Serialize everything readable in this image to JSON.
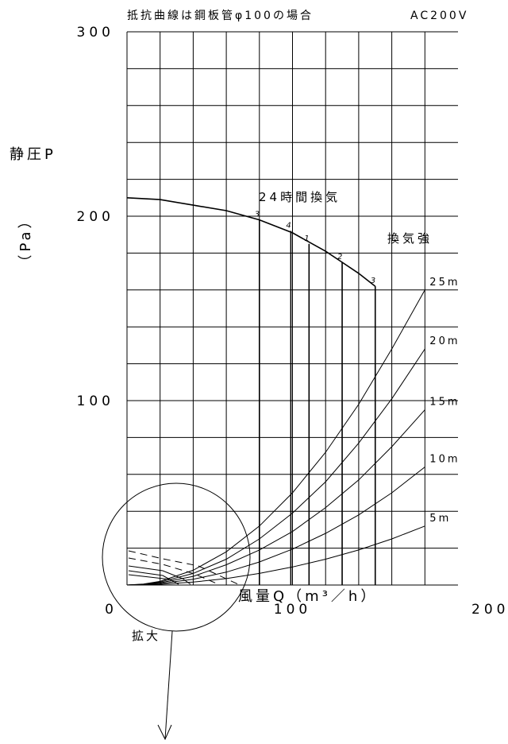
{
  "chart_data": {
    "type": "line",
    "title_note": "抵抗曲線は鋼板管φ100の場合",
    "voltage": "AC200V",
    "ylabel": "静圧P",
    "yunit": "（Pa）",
    "xlabel": "風量Q（m³／h）",
    "xlim": [
      0,
      200
    ],
    "ylim": [
      0,
      300
    ],
    "x_ticks": [
      {
        "value": 0,
        "label": "0"
      },
      {
        "value": 100,
        "label": "100"
      },
      {
        "value": 200,
        "label": "200"
      }
    ],
    "y_ticks": [
      {
        "value": 100,
        "label": "100"
      },
      {
        "value": 200,
        "label": "200"
      },
      {
        "value": 300,
        "label": "300"
      }
    ],
    "grid": true,
    "grid_x_step": 20,
    "grid_y_step": 20,
    "pq_curve": {
      "x": [
        0,
        20,
        40,
        60,
        80,
        100,
        120,
        130,
        140,
        150
      ],
      "y": [
        210,
        209,
        206,
        203,
        198,
        191,
        181,
        175,
        169,
        162
      ]
    },
    "operating_points": [
      {
        "label": "3",
        "x": 80,
        "y": 198
      },
      {
        "label": "4",
        "x": 99,
        "y": 192
      },
      {
        "label": "1",
        "x": 110,
        "y": 185
      },
      {
        "label": "2",
        "x": 130,
        "y": 175
      },
      {
        "label": "3",
        "x": 150,
        "y": 162
      }
    ],
    "mode_labels": {
      "ventilation_24h": "24時間換気",
      "ventilation_strong": "換気強"
    },
    "series": [
      {
        "name": "25m",
        "x": [
          10,
          20,
          40,
          60,
          80,
          100,
          120,
          140,
          160,
          180
        ],
        "y": [
          0.5,
          2,
          8,
          18,
          32,
          50,
          72,
          98,
          128,
          160
        ]
      },
      {
        "name": "20m",
        "x": [
          10,
          20,
          40,
          60,
          80,
          100,
          120,
          140,
          160,
          180
        ],
        "y": [
          0.4,
          1.6,
          6.3,
          14,
          25,
          39,
          56,
          77,
          101,
          128
        ]
      },
      {
        "name": "15m",
        "x": [
          10,
          20,
          40,
          60,
          80,
          100,
          120,
          140,
          160,
          180
        ],
        "y": [
          0.3,
          1.2,
          4.7,
          11,
          19,
          29,
          42,
          57,
          75,
          95
        ]
      },
      {
        "name": "10m",
        "x": [
          10,
          20,
          40,
          60,
          80,
          100,
          120,
          140,
          160,
          180
        ],
        "y": [
          0.2,
          0.8,
          3.1,
          7,
          12.5,
          19.5,
          28,
          38,
          50,
          64
        ]
      },
      {
        "name": "5m",
        "x": [
          10,
          20,
          40,
          60,
          80,
          100,
          120,
          140,
          160,
          180
        ],
        "y": [
          0.1,
          0.4,
          1.6,
          3.5,
          6.3,
          9.8,
          14,
          19,
          25,
          32
        ]
      }
    ],
    "zoom_label": "拡大"
  }
}
